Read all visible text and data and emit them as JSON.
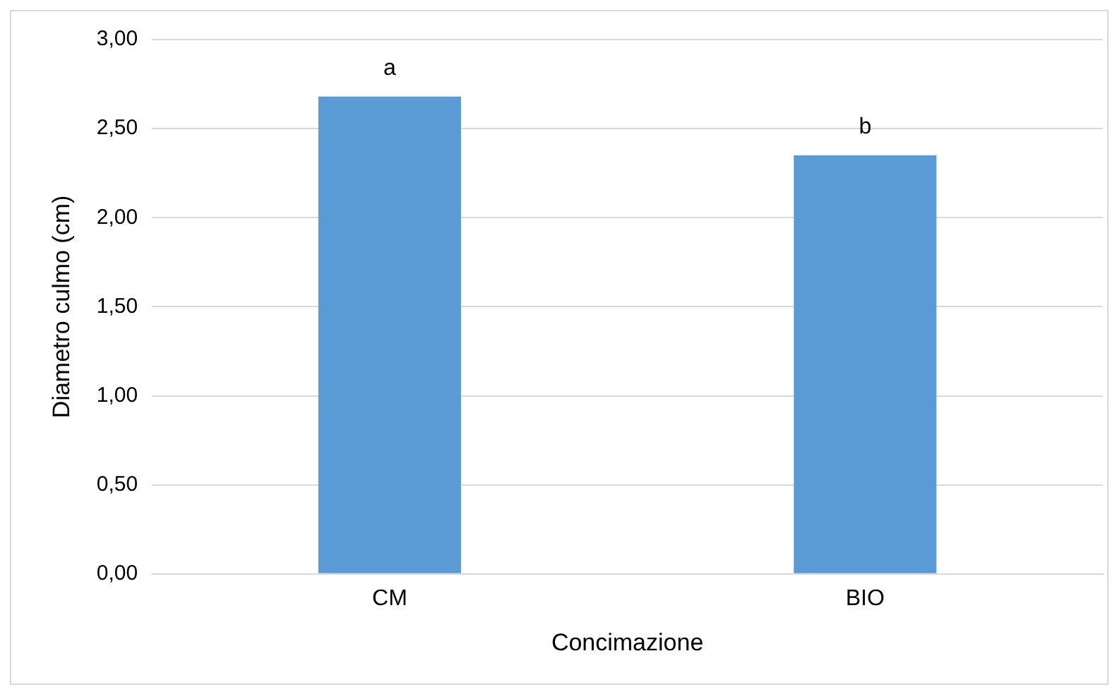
{
  "chart_data": {
    "type": "bar",
    "xlabel": "Concimazione",
    "ylabel": "Diametro culmo (cm)",
    "categories": [
      "CM",
      "BIO"
    ],
    "values": [
      2.68,
      2.35
    ],
    "color": "#5b9bd5",
    "ylim": [
      0,
      3
    ],
    "yticks": [
      {
        "value": 0,
        "label": "0,00"
      },
      {
        "value": 0.5,
        "label": "0,50"
      },
      {
        "value": 1,
        "label": "1,00"
      },
      {
        "value": 1.5,
        "label": "1,50"
      },
      {
        "value": 2,
        "label": "2,00"
      },
      {
        "value": 2.5,
        "label": "2,50"
      },
      {
        "value": 3,
        "label": "3,00"
      }
    ],
    "grid": "y",
    "annotations": [
      {
        "text": "a",
        "x": "CM",
        "y": 2.68
      },
      {
        "text": "b",
        "x": "BIO",
        "y": 2.35
      }
    ]
  }
}
